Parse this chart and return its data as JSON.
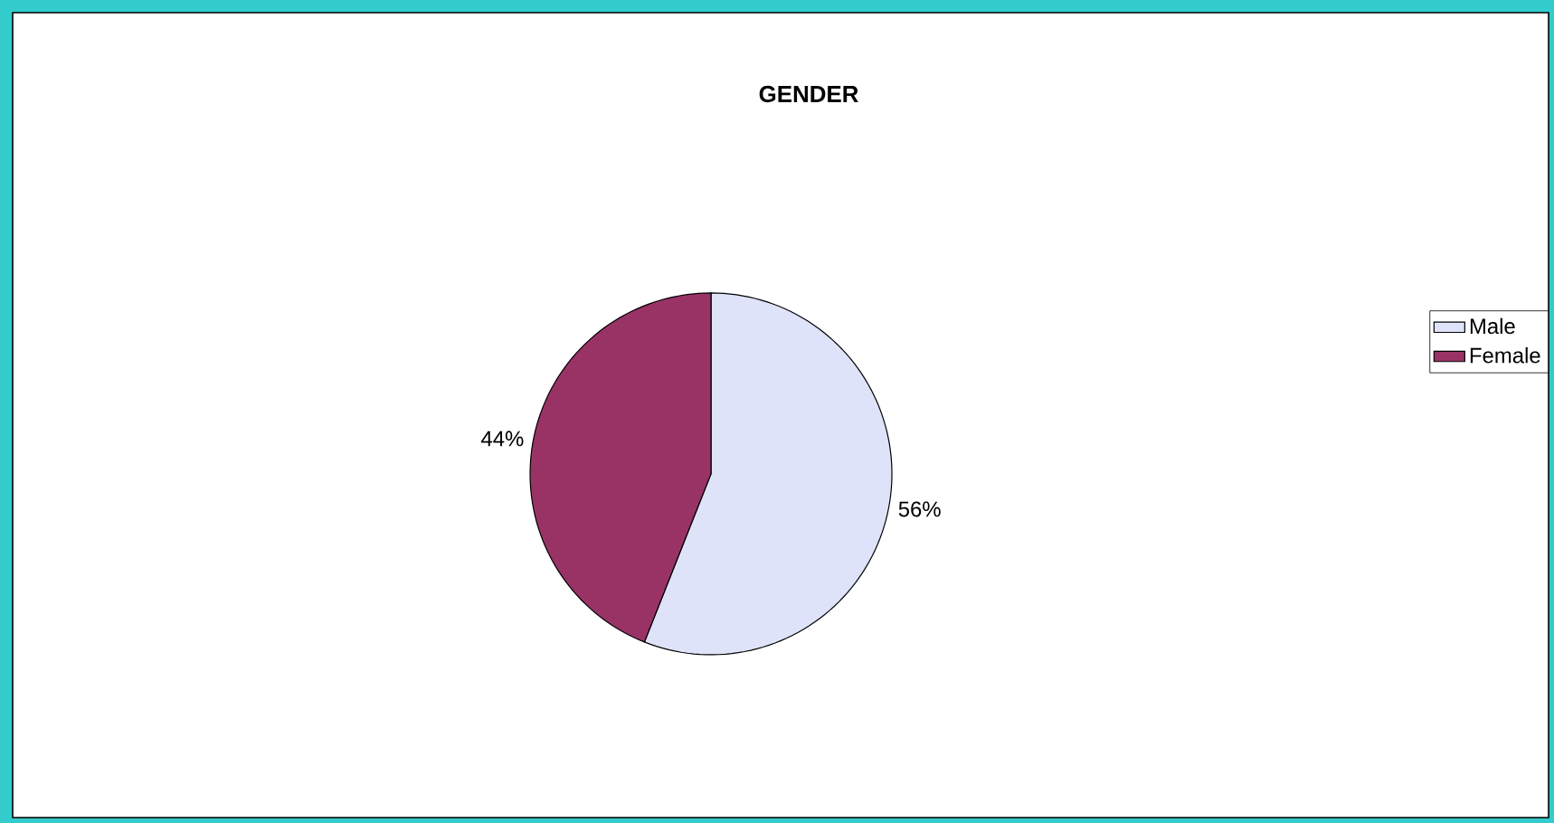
{
  "chart_data": {
    "type": "pie",
    "title": "GENDER",
    "categories": [
      "Male",
      "Female"
    ],
    "values": [
      56,
      44
    ],
    "value_labels": [
      "56%",
      "44%"
    ],
    "colors": [
      "#dfe3fa",
      "#993366"
    ],
    "legend": "right"
  }
}
